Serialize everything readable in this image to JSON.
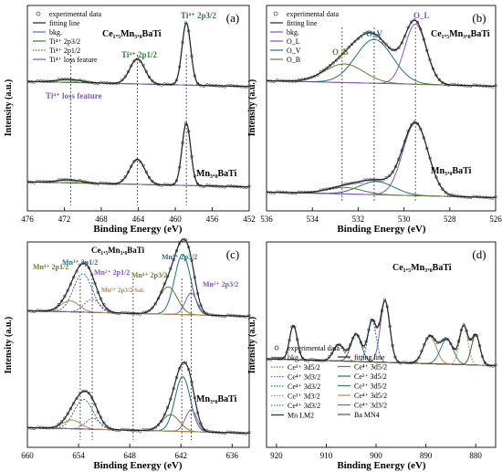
{
  "chart_data": [
    {
      "panel": "(a)",
      "type": "line",
      "title": "",
      "xlabel": "Binding Energy (eV)",
      "ylabel": "Intensity (a.u.)",
      "xlim": [
        476,
        452
      ],
      "xticks": [
        476,
        472,
        468,
        464,
        460,
        456,
        452
      ],
      "colors": {
        "data": "#555555",
        "fit": "#222222",
        "bkg": "#4a6fb5",
        "p32": "#2e7d32",
        "p12": "#5a6d2a",
        "loss": "#7e57c2"
      },
      "legend": [
        {
          "label": "experimental data",
          "style": "circle"
        },
        {
          "label": "fitting line",
          "style": "line"
        },
        {
          "label": "bkg.",
          "style": "bkg"
        },
        {
          "label": "Ti⁴⁺ 2p3/2",
          "style": "p32"
        },
        {
          "label": "Ti⁴⁺ 2p1/2",
          "style": "dot"
        },
        {
          "label": "Ti⁴⁺ loss feature",
          "style": "loss"
        }
      ],
      "sample_labels": [
        "Ce₁.₅Mn₃.₀BaTi",
        "Mn₃.₀BaTi"
      ],
      "dashed_lines_x": [
        471.3,
        464.1,
        458.8
      ],
      "annotations": [
        {
          "text": "Ti⁴⁺ 2p3/2",
          "x": 458.9
        },
        {
          "text": "Ti⁴⁺ 2p1/2",
          "x": 464.1
        },
        {
          "text": "Ti⁴⁺ loss feature",
          "x": 470.8
        }
      ],
      "series": [
        {
          "sample": "Ce₁.₅Mn₃.₀BaTi",
          "peaks": [
            {
              "center": 458.8,
              "fwhm": 1.1,
              "height": 0.62
            },
            {
              "center": 464.1,
              "fwhm": 1.9,
              "height": 0.25
            },
            {
              "center": 471.5,
              "fwhm": 3,
              "height": 0.03
            }
          ],
          "baseline": [
            0.04,
            0.07
          ]
        },
        {
          "sample": "Mn₃.₀BaTi",
          "peaks": [
            {
              "center": 458.8,
              "fwhm": 1.1,
              "height": 0.62
            },
            {
              "center": 464.1,
              "fwhm": 1.9,
              "height": 0.25
            },
            {
              "center": 471.5,
              "fwhm": 3,
              "height": 0.03
            }
          ],
          "baseline": [
            0.02,
            0.05
          ]
        }
      ]
    },
    {
      "panel": "(b)",
      "type": "line",
      "title": "",
      "xlabel": "Binding Energy (eV)",
      "ylabel": "Intensity (a.u.)",
      "xlim": [
        536,
        526
      ],
      "xticks": [
        536,
        534,
        532,
        530,
        528,
        526
      ],
      "colors": {
        "data": "#555555",
        "fit": "#222222",
        "bkg": "#7e57c2",
        "OL": "#7e57c2",
        "OV": "#1f6f8b",
        "OB": "#6b7b2a"
      },
      "legend": [
        {
          "label": "experimental data",
          "style": "circle"
        },
        {
          "label": "fitting line",
          "style": "line"
        },
        {
          "label": "bkg.",
          "style": "bkg"
        },
        {
          "label": "O_L",
          "style": "OL"
        },
        {
          "label": "O_V",
          "style": "OV"
        },
        {
          "label": "O_B",
          "style": "OB"
        }
      ],
      "sample_labels": [
        "Ce₁.₅Mn₃.₀BaTi",
        "Mn₃.₀BaTi"
      ],
      "dashed_lines_x": [
        532.7,
        531.3,
        529.5
      ],
      "annotations": [
        {
          "text": "O_L",
          "x": 529.5
        },
        {
          "text": "O_V",
          "x": 531.3
        },
        {
          "text": "O_B",
          "x": 532.7
        }
      ],
      "series": [
        {
          "sample": "Ce₁.₅Mn₃.₀BaTi",
          "peaks": [
            {
              "center": 529.5,
              "fwhm": 1.1,
              "height": 0.55
            },
            {
              "center": 531.3,
              "fwhm": 1.9,
              "height": 0.4
            },
            {
              "center": 532.6,
              "fwhm": 2.0,
              "height": 0.17
            }
          ]
        },
        {
          "sample": "Mn₃.₀BaTi",
          "peaks": [
            {
              "center": 529.5,
              "fwhm": 1.3,
              "height": 0.66
            },
            {
              "center": 531.2,
              "fwhm": 1.8,
              "height": 0.12
            },
            {
              "center": 532.6,
              "fwhm": 1.8,
              "height": 0.06
            }
          ]
        }
      ]
    },
    {
      "panel": "(c)",
      "type": "line",
      "title": "",
      "xlabel": "Binding Energy (eV)",
      "ylabel": "Intensity (a.u.)",
      "xlim": [
        660,
        634
      ],
      "xticks": [
        660,
        654,
        648,
        642,
        636
      ],
      "colors": {
        "data": "#555555",
        "fit": "#222222",
        "bkg": "#4a6fb5",
        "Mn4": "#6b7b2a",
        "Mn3": "#1f6f8b",
        "Mn2": "#7e57c2",
        "sat": "#b58b4a"
      },
      "sample_labels": [
        "Ce₁.₅Mn₃.₀BaTi",
        "Mn₃.₀BaTi"
      ],
      "dashed_lines_x": [
        653.8,
        652.4,
        647.6,
        641.9,
        640.8
      ],
      "annotations": [
        {
          "text": "Mn⁴⁺ 2p1/2"
        },
        {
          "text": "Mn³⁺ 2p1/2"
        },
        {
          "text": "Mn²⁺ 2p1/2"
        },
        {
          "text": "Mn²⁺ 2p3/2 Sat."
        },
        {
          "text": "Mn⁴⁺ 2p3/2"
        },
        {
          "text": "Mn³⁺ 2p3/2"
        },
        {
          "text": "Mn²⁺ 2p3/2"
        }
      ],
      "series": [
        {
          "sample": "Ce₁.₅Mn₃.₀BaTi",
          "peaks": [
            {
              "center": 641.8,
              "fwhm": 2.2,
              "height": 0.55
            },
            {
              "center": 643.5,
              "fwhm": 2.5,
              "height": 0.25
            },
            {
              "center": 640.8,
              "fwhm": 1.6,
              "height": 0.2
            },
            {
              "center": 653.5,
              "fwhm": 2.6,
              "height": 0.35
            },
            {
              "center": 652.4,
              "fwhm": 2.2,
              "height": 0.12
            },
            {
              "center": 655,
              "fwhm": 2.5,
              "height": 0.1
            }
          ]
        },
        {
          "sample": "Mn₃.₀BaTi",
          "peaks": [
            {
              "center": 641.8,
              "fwhm": 2.1,
              "height": 0.5
            },
            {
              "center": 643.2,
              "fwhm": 2.4,
              "height": 0.15
            },
            {
              "center": 640.8,
              "fwhm": 1.6,
              "height": 0.2
            },
            {
              "center": 653.4,
              "fwhm": 2.6,
              "height": 0.27
            },
            {
              "center": 652.3,
              "fwhm": 2.0,
              "height": 0.1
            },
            {
              "center": 654.8,
              "fwhm": 2.4,
              "height": 0.08
            }
          ]
        }
      ]
    },
    {
      "panel": "(d)",
      "type": "line",
      "title": "",
      "xlabel": "Binding Energy (eV)",
      "ylabel": "Intensity (a.u.)",
      "xlim": [
        922,
        876
      ],
      "xticks": [
        920,
        910,
        900,
        890,
        880
      ],
      "sample_labels": [
        "Ce₁.₅Mn₃.₀BaTi"
      ],
      "legend": [
        {
          "label": "experimental data",
          "style": "circle",
          "color": "#333333"
        },
        {
          "label": "fitting line",
          "style": "line",
          "color": "#222222"
        },
        {
          "label": "bkg.",
          "style": "line",
          "color": "#4a6fb5"
        },
        {
          "label": "Ce⁴⁺ 3d5/2",
          "style": "line",
          "color": "#6b7b2a"
        },
        {
          "label": "Ce³⁺ 3d5/2",
          "style": "dot",
          "color": "#6b7b2a"
        },
        {
          "label": "Ce³⁺ 3d5/2",
          "style": "line",
          "color": "#1f6f8b"
        },
        {
          "label": "Ce⁴⁺ 3d3/2",
          "style": "dot",
          "color": "#7e57c2"
        },
        {
          "label": "Ce³⁺ 3d5/2",
          "style": "line",
          "color": "#1f8b6f"
        },
        {
          "label": "Ce⁴⁺ 3d3/2",
          "style": "dot",
          "color": "#1f6f8b"
        },
        {
          "label": "Ce⁴⁺ 3d5/2",
          "style": "line",
          "color": "#b58b4a"
        },
        {
          "label": "Ce³⁺ 3d3/2",
          "style": "dot",
          "color": "#b58b4a"
        },
        {
          "label": "Ce⁴⁺ 3d3/2",
          "style": "line",
          "color": "#7e57c2"
        },
        {
          "label": "Ce⁴⁺ 3d3/2",
          "style": "dot",
          "color": "#4a6fb5"
        },
        {
          "label": "Ba MN4",
          "style": "line",
          "color": "#6b4a2a"
        },
        {
          "label": "Mn LM2",
          "style": "line",
          "color": "#1a2a5a"
        }
      ],
      "series": [
        {
          "sample": "Ce₁.₅Mn₃.₀BaTi",
          "peaks": [
            {
              "center": 916.6,
              "fwhm": 1.8,
              "height": 0.25
            },
            {
              "center": 907.5,
              "fwhm": 2.5,
              "height": 0.12
            },
            {
              "center": 904,
              "fwhm": 2.5,
              "height": 0.2
            },
            {
              "center": 900.8,
              "fwhm": 2.0,
              "height": 0.3
            },
            {
              "center": 898.2,
              "fwhm": 2.2,
              "height": 0.45
            },
            {
              "center": 889.2,
              "fwhm": 3.0,
              "height": 0.2
            },
            {
              "center": 885.8,
              "fwhm": 3.0,
              "height": 0.18
            },
            {
              "center": 882.4,
              "fwhm": 2.0,
              "height": 0.28
            },
            {
              "center": 880,
              "fwhm": 2.0,
              "height": 0.22
            }
          ]
        }
      ]
    }
  ],
  "panels_text": {
    "ylabel": "Intensity (a.u.)",
    "xlabel": "Binding Energy (eV)"
  }
}
